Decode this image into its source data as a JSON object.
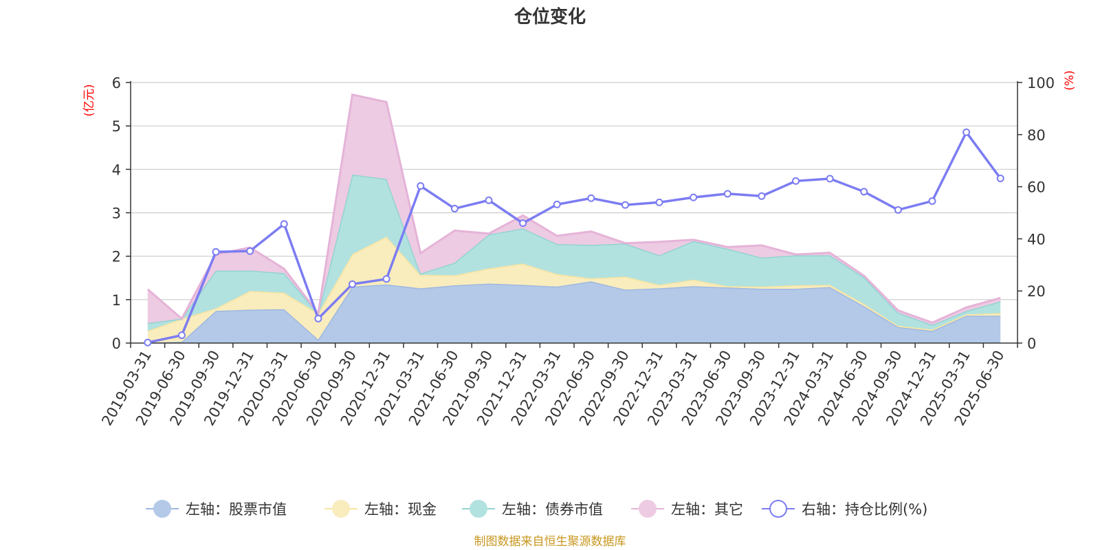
{
  "chart_data": {
    "type": "area",
    "title": "仓位变化",
    "left_unit": "(亿元)",
    "right_unit": "(%)",
    "ylim_left": [
      0,
      6
    ],
    "ylim_right": [
      0,
      100
    ],
    "yticks_left": [
      "0",
      "1",
      "2",
      "3",
      "4",
      "5",
      "6"
    ],
    "yticks_right": [
      "0",
      "20",
      "40",
      "60",
      "80",
      "100"
    ],
    "grid": true,
    "legend_position": "bottom",
    "categories": [
      "2019-03-31",
      "2019-06-30",
      "2019-09-30",
      "2019-12-31",
      "2020-03-31",
      "2020-06-30",
      "2020-09-30",
      "2020-12-31",
      "2021-03-31",
      "2021-06-30",
      "2021-09-30",
      "2021-12-31",
      "2022-03-31",
      "2022-06-30",
      "2022-09-30",
      "2022-12-31",
      "2023-03-31",
      "2023-06-30",
      "2023-09-30",
      "2023-12-31",
      "2024-03-31",
      "2024-06-30",
      "2024-09-30",
      "2024-12-31",
      "2025-03-31",
      "2025-06-30"
    ],
    "stacked_series": [
      {
        "name": "左轴：股票市值",
        "color": "#b4c9e8",
        "line": "#9db8e0",
        "values": [
          0.01,
          0.03,
          0.74,
          0.77,
          0.78,
          0.08,
          1.3,
          1.35,
          1.26,
          1.33,
          1.37,
          1.34,
          1.3,
          1.42,
          1.23,
          1.26,
          1.31,
          1.28,
          1.25,
          1.25,
          1.29,
          0.85,
          0.37,
          0.28,
          0.63,
          0.63
        ]
      },
      {
        "name": "左轴：现金",
        "color": "#f9ecbd",
        "line": "#f7e4a0",
        "values": [
          0.27,
          0.53,
          0.06,
          0.43,
          0.38,
          0.6,
          0.75,
          1.1,
          0.31,
          0.23,
          0.35,
          0.49,
          0.29,
          0.07,
          0.3,
          0.08,
          0.15,
          0.03,
          0.05,
          0.08,
          0.05,
          0.05,
          0.03,
          0.03,
          0.03,
          0.06
        ]
      },
      {
        "name": "左轴：债券市值",
        "color": "#b2e2e0",
        "line": "#91d4d2",
        "values": [
          0.18,
          0.0,
          0.87,
          0.47,
          0.45,
          0.0,
          1.83,
          1.33,
          0.03,
          0.29,
          0.78,
          0.81,
          0.69,
          0.77,
          0.76,
          0.68,
          0.89,
          0.86,
          0.67,
          0.69,
          0.68,
          0.62,
          0.3,
          0.11,
          0.08,
          0.27
        ]
      },
      {
        "name": "左轴：其它",
        "color": "#edcbe3",
        "line": "#e5b3d8",
        "values": [
          0.78,
          0.0,
          0.37,
          0.53,
          0.1,
          0.0,
          1.84,
          1.77,
          0.47,
          0.74,
          0.02,
          0.3,
          0.19,
          0.31,
          0.01,
          0.31,
          0.03,
          0.04,
          0.28,
          0.02,
          0.06,
          0.03,
          0.05,
          0.05,
          0.08,
          0.08
        ]
      }
    ],
    "line_series": {
      "name": "右轴：持仓比例(%)",
      "color": "#7b7cf2",
      "values": [
        0.2,
        3.0,
        35.0,
        35.3,
        45.7,
        9.4,
        22.6,
        24.6,
        60.3,
        51.6,
        54.8,
        46.0,
        53.2,
        55.6,
        53.0,
        54.0,
        55.9,
        57.3,
        56.4,
        62.2,
        63.1,
        58.1,
        51.1,
        54.5,
        80.9,
        63.2
      ]
    },
    "source_text": "制图数据来自恒生聚源数据库"
  }
}
